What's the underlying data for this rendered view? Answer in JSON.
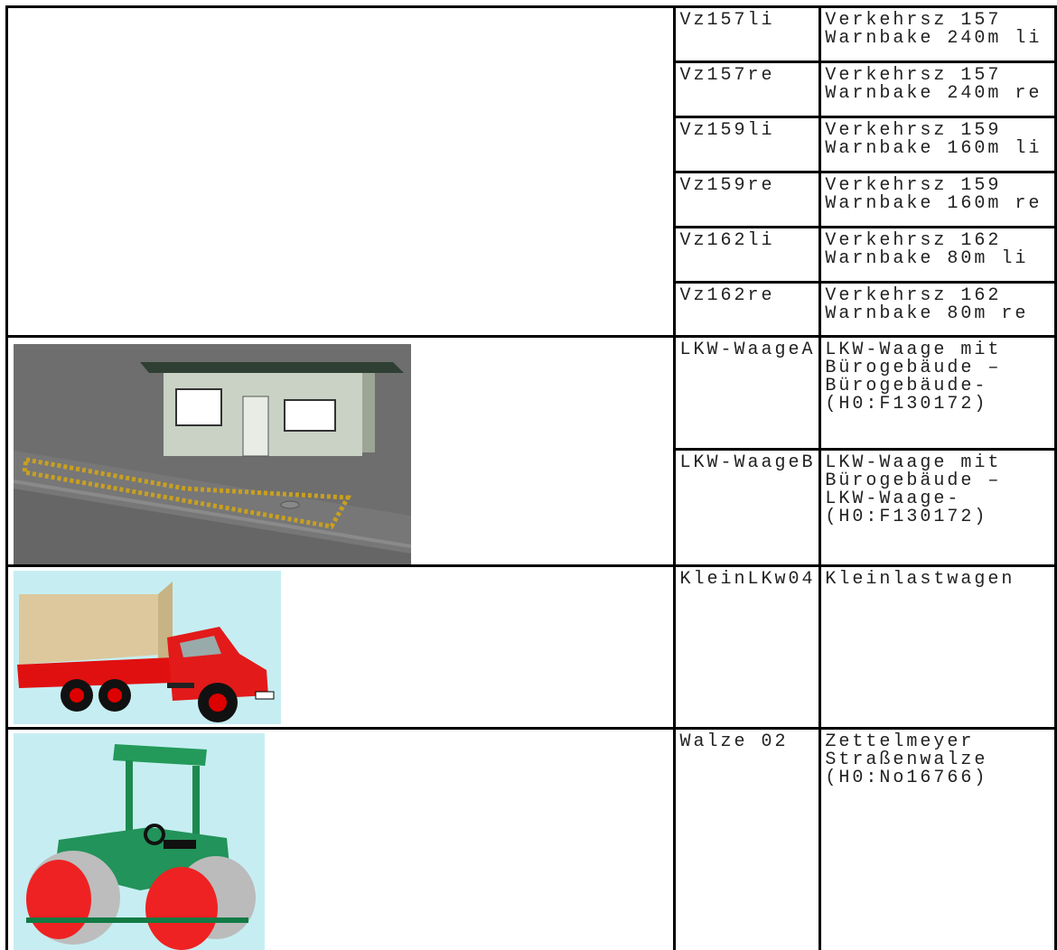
{
  "table": {
    "groups": [
      {
        "items": [
          {
            "code": "Vz157li",
            "description": [
              "Verkehrsz 157",
              "Warnbake 240m li"
            ]
          },
          {
            "code": "Vz157re",
            "description": [
              "Verkehrsz 157",
              "Warnbake 240m re"
            ]
          },
          {
            "code": "Vz159li",
            "description": [
              "Verkehrsz 159",
              "Warnbake 160m li"
            ]
          },
          {
            "code": "Vz159re",
            "description": [
              "Verkehrsz 159",
              "Warnbake 160m re"
            ]
          },
          {
            "code": "Vz162li",
            "description": [
              "Verkehrsz 162",
              "Warnbake 80m li"
            ]
          },
          {
            "code": "Vz162re",
            "description": [
              "Verkehrsz 162",
              "Warnbake 80m re"
            ]
          }
        ]
      },
      {
        "items": [
          {
            "code": "LKW-WaageA",
            "description": [
              "LKW-Waage mit",
              "Bürogebäude –",
              "Bürogebäude-",
              "(H0:F130172)"
            ]
          },
          {
            "code": "LKW-WaageB",
            "description": [
              "LKW-Waage mit",
              "Bürogebäude –",
              "LKW-Waage-",
              "(H0:F130172)"
            ]
          }
        ]
      },
      {
        "items": [
          {
            "code": "KleinLKw04",
            "description": [
              "Kleinlastwagen"
            ]
          }
        ]
      },
      {
        "items": [
          {
            "code": "Walze 02",
            "description": [
              "Zettelmeyer",
              "Straßenwalze",
              "(H0:No16766)"
            ]
          }
        ]
      }
    ]
  }
}
